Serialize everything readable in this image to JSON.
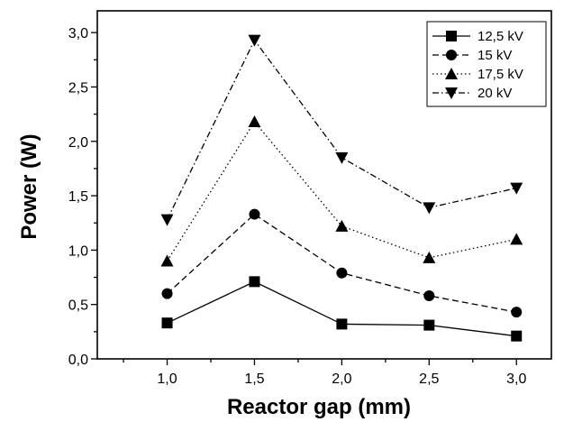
{
  "chart_data": {
    "type": "line",
    "xlabel": "Reactor gap (mm)",
    "ylabel": "Power (W)",
    "x": [
      1.0,
      1.5,
      2.0,
      2.5,
      3.0
    ],
    "x_ticks": [
      "1,0",
      "1,5",
      "2,0",
      "2,5",
      "3,0"
    ],
    "y_ticks": [
      "0,0",
      "0,5",
      "1,0",
      "1,5",
      "2,0",
      "2,5",
      "3,0"
    ],
    "xlim": [
      0.6,
      3.2
    ],
    "ylim": [
      0,
      3.2
    ],
    "legend_position": "top-right",
    "grid": false,
    "series": [
      {
        "name": "12,5 kV",
        "marker": "square",
        "dash": "solid",
        "values": [
          0.33,
          0.71,
          0.32,
          0.31,
          0.21
        ]
      },
      {
        "name": "15 kV",
        "marker": "circle",
        "dash": "dashed",
        "values": [
          0.6,
          1.33,
          0.79,
          0.58,
          0.43
        ]
      },
      {
        "name": "17,5 kV",
        "marker": "triangle-up",
        "dash": "dotted",
        "values": [
          0.9,
          2.18,
          1.22,
          0.93,
          1.1
        ]
      },
      {
        "name": "20 kV",
        "marker": "triangle-down",
        "dash": "dash-dot",
        "values": [
          1.28,
          2.93,
          1.85,
          1.39,
          1.57
        ]
      }
    ]
  }
}
